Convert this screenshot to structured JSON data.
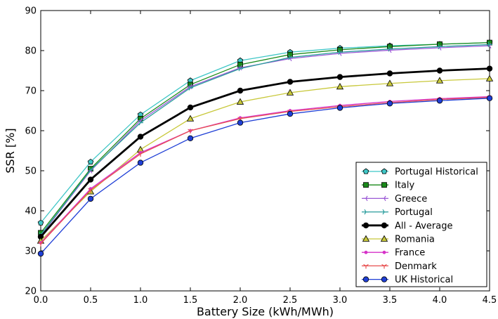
{
  "chart_data": {
    "type": "line",
    "title": "",
    "xlabel": "Battery Size (kWh/MWh)",
    "ylabel": "SSR [%]",
    "xlim": [
      0.0,
      4.5
    ],
    "ylim": [
      20,
      90
    ],
    "x_ticks": [
      "0.0",
      "0.5",
      "1.0",
      "1.5",
      "2.0",
      "2.5",
      "3.0",
      "3.5",
      "4.0",
      "4.5"
    ],
    "y_ticks": [
      "20",
      "30",
      "40",
      "50",
      "60",
      "70",
      "80",
      "90"
    ],
    "grid": false,
    "legend_position": "lower-right",
    "x": [
      0.0,
      0.5,
      1.0,
      1.5,
      2.0,
      2.5,
      3.0,
      3.5,
      4.0,
      4.5
    ],
    "series": [
      {
        "name": "Portugal Historical",
        "color": "#3ec6c6",
        "marker": "pentagon",
        "marker_color": "#3ec6c6",
        "values": [
          37.0,
          52.2,
          64.0,
          72.5,
          77.5,
          79.6,
          80.6,
          81.2,
          81.6,
          82.0
        ]
      },
      {
        "name": "Italy",
        "color": "#1a8a1a",
        "marker": "square",
        "marker_color": "#1a8a1a",
        "values": [
          34.5,
          50.5,
          63.0,
          71.5,
          76.5,
          79.0,
          80.2,
          81.0,
          81.6,
          82.0
        ]
      },
      {
        "name": "Greece",
        "color": "#9b59d6",
        "marker": "tri_right",
        "marker_color": "#9b59d6",
        "values": [
          33.8,
          50.0,
          62.5,
          71.0,
          75.7,
          78.0,
          79.3,
          80.1,
          80.7,
          81.2
        ]
      },
      {
        "name": "Portugal",
        "color": "#2a9d9d",
        "marker": "tri_left",
        "marker_color": "#2a9d9d",
        "values": [
          34.0,
          50.2,
          62.0,
          70.7,
          75.5,
          78.3,
          79.6,
          80.4,
          81.0,
          81.5
        ]
      },
      {
        "name": "All - Average",
        "color": "#000000",
        "marker": "circle",
        "marker_color": "#000000",
        "values": [
          33.5,
          47.8,
          58.5,
          65.8,
          70.0,
          72.2,
          73.4,
          74.3,
          75.0,
          75.5
        ]
      },
      {
        "name": "Romania",
        "color": "#c8c83a",
        "marker": "triangle",
        "marker_color": "#c8c83a",
        "values": [
          32.5,
          44.8,
          55.3,
          63.0,
          67.2,
          69.5,
          71.0,
          71.8,
          72.5,
          73.0
        ]
      },
      {
        "name": "France",
        "color": "#d630c8",
        "marker": "point",
        "marker_color": "#d630c8",
        "values": [
          32.0,
          45.5,
          54.5,
          60.0,
          63.2,
          65.0,
          66.3,
          67.3,
          68.0,
          68.5
        ]
      },
      {
        "name": "Denmark",
        "color": "#e85050",
        "marker": "tri_down",
        "marker_color": "#e85050",
        "values": [
          31.8,
          45.2,
          54.2,
          60.0,
          63.0,
          64.8,
          66.0,
          67.0,
          67.8,
          68.3
        ]
      },
      {
        "name": "UK Historical",
        "color": "#1f3fd6",
        "marker": "circle",
        "marker_color": "#1f3fd6",
        "values": [
          29.3,
          43.0,
          52.0,
          58.1,
          62.0,
          64.2,
          65.7,
          66.8,
          67.5,
          68.1
        ]
      }
    ]
  }
}
